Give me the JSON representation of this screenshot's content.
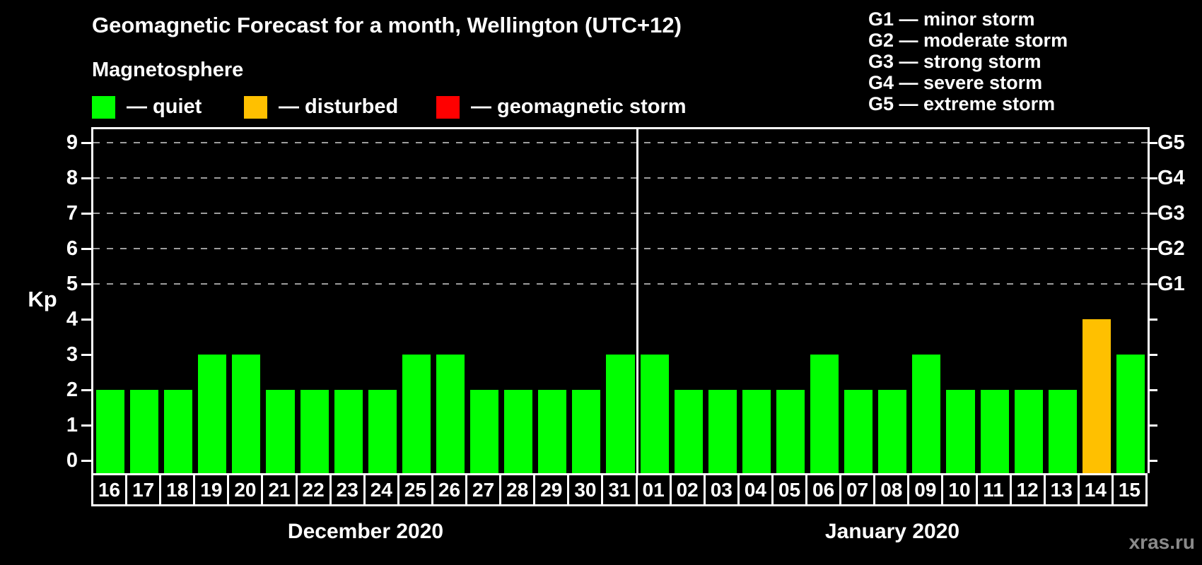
{
  "header": {
    "title": "Geomagnetic Forecast for a month, Wellington (UTC+12)",
    "subtitle": "Magnetosphere"
  },
  "legend": {
    "items": [
      {
        "key": "quiet",
        "label": "— quiet",
        "color": "#00ff00"
      },
      {
        "key": "disturbed",
        "label": "— disturbed",
        "color": "#ffc000"
      },
      {
        "key": "storm",
        "label": "— geomagnetic storm",
        "color": "#ff0000"
      }
    ]
  },
  "g_legend": {
    "lines": [
      "G1 — minor storm",
      "G2 — moderate storm",
      "G3 — strong storm",
      "G4 — severe storm",
      "G5 — extreme storm"
    ]
  },
  "y_axis": {
    "label": "Kp",
    "ticks": [
      0,
      1,
      2,
      3,
      4,
      5,
      6,
      7,
      8,
      9
    ]
  },
  "right_axis": {
    "labels": [
      {
        "text": "G1",
        "kp": 5
      },
      {
        "text": "G2",
        "kp": 6
      },
      {
        "text": "G3",
        "kp": 7
      },
      {
        "text": "G4",
        "kp": 8
      },
      {
        "text": "G5",
        "kp": 9
      }
    ]
  },
  "watermark": "xras.ru",
  "chart_data": {
    "type": "bar",
    "title": "Geomagnetic Forecast for a month, Wellington (UTC+12)",
    "xlabel": "",
    "ylabel": "Kp",
    "ylim": [
      0,
      9
    ],
    "grid": "horizontal dashed lines at Kp 5,6,7,8,9 only",
    "gridlines_kp": [
      5,
      6,
      7,
      8,
      9
    ],
    "legend_position": "top-left (magnetosphere states), top-right (G scale)",
    "colors": {
      "quiet": "#00ff00",
      "disturbed": "#ffc000",
      "storm": "#ff0000"
    },
    "months": [
      {
        "label": "December 2020",
        "days": [
          "16",
          "17",
          "18",
          "19",
          "20",
          "21",
          "22",
          "23",
          "24",
          "25",
          "26",
          "27",
          "28",
          "29",
          "30",
          "31"
        ],
        "values": [
          2,
          2,
          2,
          3,
          3,
          2,
          2,
          2,
          2,
          3,
          3,
          2,
          2,
          2,
          2,
          3
        ],
        "status": [
          "quiet",
          "quiet",
          "quiet",
          "quiet",
          "quiet",
          "quiet",
          "quiet",
          "quiet",
          "quiet",
          "quiet",
          "quiet",
          "quiet",
          "quiet",
          "quiet",
          "quiet",
          "quiet"
        ]
      },
      {
        "label": "January 2020",
        "days": [
          "01",
          "02",
          "03",
          "04",
          "05",
          "06",
          "07",
          "08",
          "09",
          "10",
          "11",
          "12",
          "13",
          "14",
          "15"
        ],
        "values": [
          3,
          2,
          2,
          2,
          2,
          3,
          2,
          2,
          3,
          2,
          2,
          2,
          2,
          4,
          3
        ],
        "status": [
          "quiet",
          "quiet",
          "quiet",
          "quiet",
          "quiet",
          "quiet",
          "quiet",
          "quiet",
          "quiet",
          "quiet",
          "quiet",
          "quiet",
          "quiet",
          "disturbed",
          "quiet"
        ]
      }
    ]
  }
}
